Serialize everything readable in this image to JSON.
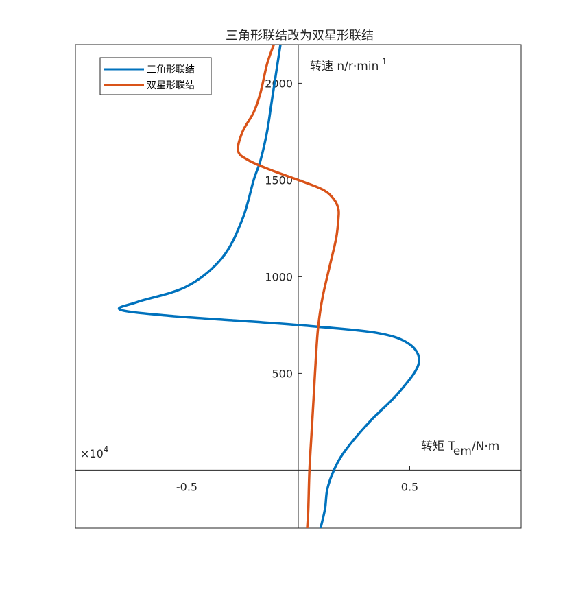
{
  "chart_data": {
    "type": "line",
    "title": "三角形联结改为双星形联结",
    "xlabel": {
      "main": "转矩 T",
      "sub": "em",
      "tail": "/N·m"
    },
    "ylabel": {
      "main": "转速 n/r·min",
      "sup": "-1"
    },
    "x_multiplier": {
      "prefix": "×10",
      "exp": "4"
    },
    "xlim": [
      -1,
      1
    ],
    "ylim": [
      -300,
      2200
    ],
    "x_ticks": [
      -0.5,
      0.5
    ],
    "x_tick_labels": [
      "-0.5",
      "0.5"
    ],
    "y_ticks": [
      500,
      1000,
      1500,
      2000
    ],
    "y_tick_labels": [
      "500",
      "1000",
      "1500",
      "2000"
    ],
    "grid": false,
    "legend_position": "top-left",
    "series": [
      {
        "name": "三角形联结",
        "color": "#0072BD",
        "x": [
          0.1,
          0.12,
          0.13,
          0.16,
          0.21,
          0.32,
          0.45,
          0.54,
          0.5,
          0.35,
          0.0,
          -0.3,
          -0.6,
          -0.8,
          -0.72,
          -0.5,
          -0.34,
          -0.25,
          -0.2,
          -0.17,
          -0.14,
          -0.12,
          -0.1,
          -0.08
        ],
        "y": [
          -300,
          -200,
          -100,
          0,
          100,
          250,
          400,
          550,
          650,
          710,
          750,
          775,
          800,
          830,
          870,
          950,
          1100,
          1300,
          1500,
          1600,
          1750,
          1900,
          2050,
          2200
        ]
      },
      {
        "name": "双星形联结",
        "color": "#D95319",
        "x": [
          0.04,
          0.045,
          0.05,
          0.06,
          0.07,
          0.08,
          0.09,
          0.11,
          0.14,
          0.17,
          0.18,
          0.18,
          0.16,
          0.11,
          0.0,
          -0.12,
          -0.22,
          -0.27,
          -0.25,
          -0.2,
          -0.17,
          -0.14,
          -0.11
        ],
        "y": [
          -300,
          -200,
          0,
          200,
          400,
          600,
          750,
          900,
          1050,
          1200,
          1300,
          1350,
          1400,
          1450,
          1500,
          1550,
          1600,
          1650,
          1750,
          1850,
          1950,
          2100,
          2200
        ]
      }
    ]
  }
}
